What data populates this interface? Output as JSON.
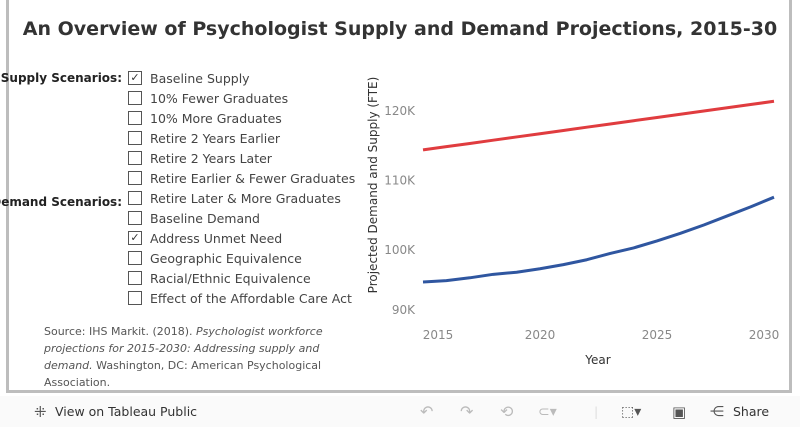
{
  "title": "An Overview of Psychologist Supply and Demand Projections, 2015-30",
  "supply_label": "Supply Scenarios:",
  "demand_label": "Demand Scenarios:",
  "supply": [
    {
      "label": "Baseline Supply",
      "checked": true
    },
    {
      "label": "10% Fewer Graduates",
      "checked": false
    },
    {
      "label": "10% More Graduates",
      "checked": false
    },
    {
      "label": "Retire 2 Years Earlier",
      "checked": false
    },
    {
      "label": "Retire 2 Years Later",
      "checked": false
    },
    {
      "label": "Retire Earlier & Fewer Graduates",
      "checked": false
    },
    {
      "label": "Retire Later & More Graduates",
      "checked": false
    }
  ],
  "demand": [
    {
      "label": "Baseline Demand",
      "checked": false
    },
    {
      "label": "Address Unmet Need",
      "checked": true
    },
    {
      "label": "Geographic Equivalence",
      "checked": false
    },
    {
      "label": "Racial/Ethnic Equivalence",
      "checked": false
    },
    {
      "label": "Effect of the Affordable Care Act",
      "checked": false
    }
  ],
  "source": {
    "prefix": "Source: IHS Markit. (2018). ",
    "italic": "Psychologist workforce projections for 2015-2030: Addressing supply and demand.",
    "suffix": " Washington, DC: American Psychological Association."
  },
  "chart_data": {
    "type": "line",
    "xlabel": "Year",
    "ylabel": "Projected Demand and Supply (FTE)",
    "x": [
      2015,
      2016,
      2017,
      2018,
      2019,
      2020,
      2021,
      2022,
      2023,
      2024,
      2025,
      2026,
      2027,
      2028,
      2029,
      2030
    ],
    "xticks": [
      "2015",
      "2020",
      "2025",
      "2030"
    ],
    "yticks": [
      "90K",
      "100K",
      "110K",
      "120K"
    ],
    "ylim": [
      90000,
      124000
    ],
    "series": [
      {
        "color": "#e03c3f",
        "values": [
          114400,
          114870,
          115330,
          115800,
          116270,
          116730,
          117200,
          117670,
          118130,
          118600,
          119070,
          119530,
          120000,
          120470,
          120930,
          121400
        ]
      },
      {
        "color": "#2f56a0",
        "values": [
          95400,
          95600,
          96000,
          96500,
          96800,
          97300,
          97900,
          98600,
          99500,
          100300,
          101300,
          102400,
          103600,
          104900,
          106200,
          107600
        ]
      }
    ]
  },
  "toolbar": {
    "view_label": "View on Tableau Public",
    "share_label": "Share"
  }
}
